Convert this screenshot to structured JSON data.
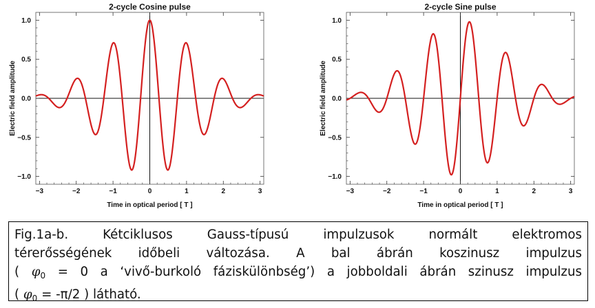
{
  "chart_data": [
    {
      "type": "line",
      "title": "2-cycle Cosine pulse",
      "xlabel": "Time in optical period [ T ]",
      "ylabel": "Electric field amplitude",
      "xlim": [
        -3.1,
        3.1
      ],
      "ylim": [
        -1.1,
        1.1
      ],
      "xticks": [
        "−3",
        "−2",
        "−1",
        "0",
        "1",
        "2",
        "3"
      ],
      "yticks": [
        "1.0",
        "0.5",
        "0.0",
        "−0.5",
        "−1.0"
      ],
      "series": [
        {
          "color": "#d42020",
          "function": "exp(-(t/1.2)^2*ln2*... ) gaussian-enveloped cosine, 2 cycles FWHM",
          "phase": 0,
          "peaks": [
            {
              "x": -3.0,
              "y": 0.01
            },
            {
              "x": -2.5,
              "y": -0.04
            },
            {
              "x": -2.0,
              "y": 0.14
            },
            {
              "x": -1.5,
              "y": -0.34
            },
            {
              "x": -1.0,
              "y": 0.71
            },
            {
              "x": -0.5,
              "y": -0.88
            },
            {
              "x": 0.0,
              "y": 1.0
            },
            {
              "x": 0.5,
              "y": -0.88
            },
            {
              "x": 1.0,
              "y": 0.71
            },
            {
              "x": 1.5,
              "y": -0.34
            },
            {
              "x": 2.0,
              "y": 0.14
            },
            {
              "x": 2.5,
              "y": -0.04
            },
            {
              "x": 3.0,
              "y": 0.01
            }
          ]
        }
      ]
    },
    {
      "type": "line",
      "title": "2-cycle Sine pulse",
      "xlabel": "Time in optical period [ T ]",
      "ylabel": "Electric field amplitude",
      "xlim": [
        -3.1,
        3.1
      ],
      "ylim": [
        -1.1,
        1.1
      ],
      "xticks": [
        "−3",
        "−2",
        "−1",
        "0",
        "1",
        "2",
        "3"
      ],
      "yticks": [
        "1.0",
        "0.5",
        "0.0",
        "−0.5",
        "−1.0"
      ],
      "series": [
        {
          "color": "#d42020",
          "phase": -1.5708,
          "peaks": [
            {
              "x": -2.75,
              "y": 0.02
            },
            {
              "x": -2.25,
              "y": -0.09
            },
            {
              "x": -1.75,
              "y": 0.22
            },
            {
              "x": -1.25,
              "y": -0.46
            },
            {
              "x": -0.75,
              "y": 0.76
            },
            {
              "x": -0.25,
              "y": -0.97
            },
            {
              "x": 0.25,
              "y": 0.97
            },
            {
              "x": 0.75,
              "y": -0.76
            },
            {
              "x": 1.25,
              "y": 0.46
            },
            {
              "x": 1.75,
              "y": -0.22
            },
            {
              "x": 2.25,
              "y": 0.09
            },
            {
              "x": 2.75,
              "y": -0.02
            }
          ]
        }
      ]
    }
  ],
  "caption": {
    "line1": "Fig.1a-b. Kétciklusos Gauss-típusú impulzusok normált elektromos",
    "line2": "térerősségének időbeli változása. A bal ábrán koszinusz impulzus",
    "line3_a": "(",
    "line3_phi": "φ",
    "line3_sub": "0",
    "line3_b": "= 0 a ‘vivő-burkoló fáziskülönbség’) a jobboldali ábrán szinusz impulzus",
    "line4_a": "(",
    "line4_phi": "φ",
    "line4_sub": "0",
    "line4_b": "= -π/2 )  látható."
  }
}
